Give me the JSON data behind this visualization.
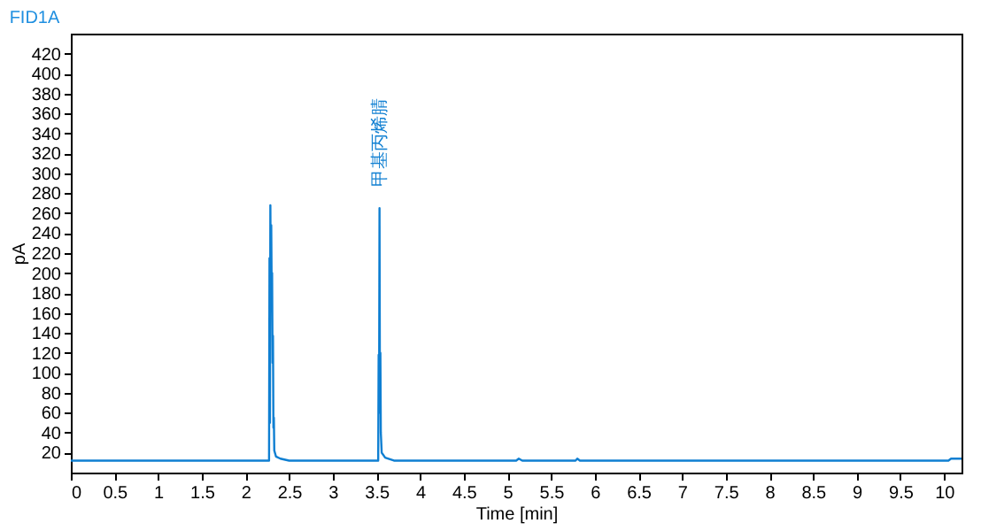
{
  "chart_data": {
    "type": "line",
    "title": "FID1A",
    "xlabel": "Time [min]",
    "ylabel": "pA",
    "x": [
      0,
      2.27,
      2.275,
      2.28,
      2.285,
      2.29,
      2.295,
      2.3,
      2.305,
      2.31,
      2.315,
      2.32,
      2.325,
      2.33,
      2.35,
      2.4,
      2.5,
      3.52,
      3.525,
      3.53,
      3.535,
      3.54,
      3.545,
      3.55,
      3.56,
      3.6,
      3.7,
      5.1,
      5.13,
      5.17,
      5.78,
      5.8,
      5.83,
      10.05,
      10.08,
      10.2
    ],
    "series": [
      {
        "color": "#0f7fd2",
        "values": [
          12,
          12,
          215,
          50,
          268,
          190,
          248,
          185,
          200,
          110,
          137,
          45,
          55,
          22,
          16,
          14,
          12,
          12,
          118,
          75,
          265,
          60,
          120,
          40,
          20,
          15,
          12,
          12,
          14,
          12,
          12,
          14,
          12,
          12,
          14,
          14
        ]
      }
    ],
    "xlim": [
      0,
      10.2
    ],
    "xticks": [
      0,
      0.5,
      1,
      1.5,
      2,
      2.5,
      3,
      3.5,
      4,
      4.5,
      5,
      5.5,
      6,
      6.5,
      7,
      7.5,
      8,
      8.5,
      9,
      9.5,
      10
    ],
    "ylim": [
      0,
      440
    ],
    "yticks": [
      20,
      40,
      60,
      80,
      100,
      120,
      140,
      160,
      180,
      200,
      220,
      240,
      260,
      280,
      300,
      320,
      340,
      360,
      380,
      400,
      420
    ],
    "annotations": [
      {
        "text": "甲基丙烯腈",
        "x": 3.535,
        "y": 265
      }
    ],
    "grid": false,
    "marker": "none",
    "line_style": "solid"
  }
}
